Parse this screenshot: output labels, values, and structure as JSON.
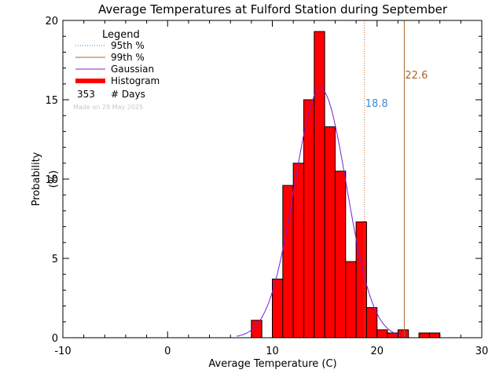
{
  "chart_data": {
    "type": "bar",
    "title": "Average Temperatures at Fulford Station during September",
    "xlabel": "Average Temperature (C)",
    "ylabel": "Probability\n(%)",
    "xlim": [
      -10,
      30
    ],
    "ylim": [
      0,
      20
    ],
    "xticks": [
      "-10",
      "0",
      "10",
      "20",
      "30"
    ],
    "yticks": [
      "0",
      "5",
      "10",
      "15",
      "20"
    ],
    "bin_width": 1,
    "bins": [
      {
        "x": 8,
        "value": 1.1
      },
      {
        "x": 9,
        "value": 0.0
      },
      {
        "x": 10,
        "value": 3.7
      },
      {
        "x": 11,
        "value": 9.6
      },
      {
        "x": 12,
        "value": 11.0
      },
      {
        "x": 13,
        "value": 15.0
      },
      {
        "x": 14,
        "value": 19.3
      },
      {
        "x": 15,
        "value": 13.3
      },
      {
        "x": 16,
        "value": 10.5
      },
      {
        "x": 17,
        "value": 4.8
      },
      {
        "x": 18,
        "value": 7.3
      },
      {
        "x": 19,
        "value": 1.9
      },
      {
        "x": 20,
        "value": 0.5
      },
      {
        "x": 21,
        "value": 0.3
      },
      {
        "x": 22,
        "value": 0.5
      },
      {
        "x": 23,
        "value": 0.0
      },
      {
        "x": 24,
        "value": 0.3
      },
      {
        "x": 25,
        "value": 0.3
      }
    ],
    "gaussian": {
      "mean": 14.6,
      "sigma": 2.5,
      "peak": 15.7
    },
    "percentiles": [
      {
        "name": "95th %",
        "value": 18.8,
        "label": "18.8",
        "color": "#d4622a",
        "label_color": "#3a8fd6",
        "style": "dotted"
      },
      {
        "name": "99th %",
        "value": 22.6,
        "label": "22.6",
        "color": "#a8652a",
        "label_color": "#a8652a",
        "style": "solid"
      }
    ],
    "legend": {
      "title": "Legend",
      "items": [
        {
          "label": "95th %",
          "color": "#3a8fd6",
          "style": "dotted"
        },
        {
          "label": "99th %",
          "color": "#a8652a",
          "style": "solid"
        },
        {
          "label": "Gaussian",
          "color": "#7b1fd0",
          "style": "solid"
        },
        {
          "label": "Histogram",
          "color": "#ff0000",
          "style": "thick"
        }
      ],
      "days_count": "353",
      "days_label": "# Days",
      "made_on": "Made on 29 May 2025",
      "placement": "top-left"
    },
    "colors": {
      "bar_fill": "#ff0000",
      "bar_edge": "#000000",
      "gaussian": "#7b1fd0"
    }
  }
}
